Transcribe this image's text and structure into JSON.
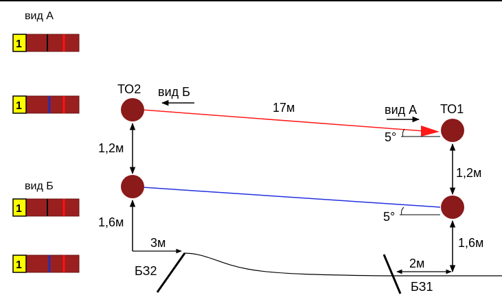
{
  "panels": {
    "labels": [
      "вид А",
      "вид Б"
    ],
    "strips": [
      {
        "number": "1",
        "divider_color": "#000000"
      },
      {
        "number": "1",
        "divider_color": "#2230b0"
      },
      {
        "number": "1",
        "divider_color": "#000000"
      },
      {
        "number": "1",
        "divider_color": "#2230b0"
      }
    ]
  },
  "nodes": {
    "to1": "ТО1",
    "to2": "ТО2"
  },
  "views": {
    "a": "вид А",
    "b": "вид Б"
  },
  "dimensions": {
    "span": "17м",
    "left_upper": "1,2м",
    "left_lower": "1,6м",
    "right_upper": "1,2м",
    "right_lower": "1,6м",
    "bz32_offset": "3м",
    "bz31_offset": "2м"
  },
  "angles": {
    "upper": "5°",
    "lower": "5°"
  },
  "poles": {
    "bz32": "БЗ2",
    "bz31": "БЗ1"
  },
  "colors": {
    "node": "#8b1a1a",
    "red_line": "#ff1a1a",
    "blue_line": "#2230e0",
    "strip_fill": "#9a2020",
    "strip_red_mark": "#ff1010",
    "number_box": "#ffff00"
  }
}
